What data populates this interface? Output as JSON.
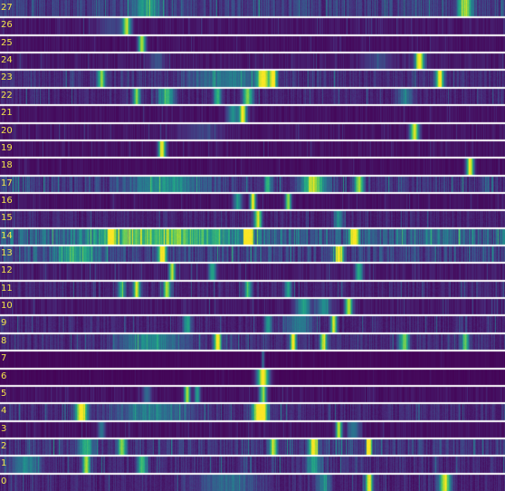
{
  "chart_data": {
    "type": "heatmap",
    "rows": [
      "27",
      "26",
      "25",
      "24",
      "23",
      "22",
      "21",
      "20",
      "19",
      "18",
      "17",
      "16",
      "15",
      "14",
      "13",
      "12",
      "11",
      "10",
      "9",
      "8",
      "7",
      "6",
      "5",
      "4",
      "3",
      "2",
      "1",
      "0"
    ],
    "colormap": "viridis",
    "value_range": [
      0,
      1
    ],
    "row_activity": [
      {
        "row": "27",
        "base": 0.18,
        "noise": 0.2,
        "peaks": [
          [
            0.29,
            0.02,
            0.35
          ],
          [
            0.92,
            0.01,
            0.7
          ]
        ]
      },
      {
        "row": "26",
        "base": 0.06,
        "noise": 0.08,
        "peaks": [
          [
            0.25,
            0.006,
            0.75
          ],
          [
            0.22,
            0.02,
            0.15
          ]
        ]
      },
      {
        "row": "25",
        "base": 0.05,
        "noise": 0.06,
        "peaks": [
          [
            0.28,
            0.005,
            0.85
          ]
        ]
      },
      {
        "row": "24",
        "base": 0.07,
        "noise": 0.08,
        "peaks": [
          [
            0.83,
            0.006,
            1.0
          ],
          [
            0.31,
            0.01,
            0.2
          ],
          [
            0.75,
            0.02,
            0.15
          ]
        ]
      },
      {
        "row": "23",
        "base": 0.13,
        "noise": 0.18,
        "peaks": [
          [
            0.2,
            0.005,
            0.7
          ],
          [
            0.52,
            0.008,
            0.85
          ],
          [
            0.54,
            0.005,
            0.9
          ],
          [
            0.87,
            0.005,
            0.95
          ],
          [
            0.45,
            0.05,
            0.3
          ]
        ]
      },
      {
        "row": "22",
        "base": 0.1,
        "noise": 0.15,
        "peaks": [
          [
            0.27,
            0.005,
            0.7
          ],
          [
            0.33,
            0.01,
            0.55
          ],
          [
            0.43,
            0.005,
            0.6
          ],
          [
            0.49,
            0.007,
            0.7
          ],
          [
            0.8,
            0.01,
            0.3
          ]
        ]
      },
      {
        "row": "21",
        "base": 0.05,
        "noise": 0.06,
        "peaks": [
          [
            0.48,
            0.005,
            0.95
          ],
          [
            0.46,
            0.008,
            0.45
          ]
        ]
      },
      {
        "row": "20",
        "base": 0.06,
        "noise": 0.08,
        "peaks": [
          [
            0.82,
            0.006,
            0.9
          ],
          [
            0.4,
            0.03,
            0.15
          ]
        ]
      },
      {
        "row": "19",
        "base": 0.05,
        "noise": 0.07,
        "peaks": [
          [
            0.32,
            0.005,
            0.95
          ]
        ]
      },
      {
        "row": "18",
        "base": 0.04,
        "noise": 0.05,
        "peaks": [
          [
            0.93,
            0.005,
            0.95
          ]
        ]
      },
      {
        "row": "17",
        "base": 0.16,
        "noise": 0.2,
        "peaks": [
          [
            0.62,
            0.015,
            0.75
          ],
          [
            0.71,
            0.006,
            0.7
          ],
          [
            0.33,
            0.05,
            0.35
          ],
          [
            0.53,
            0.005,
            0.5
          ]
        ]
      },
      {
        "row": "16",
        "base": 0.05,
        "noise": 0.07,
        "peaks": [
          [
            0.5,
            0.004,
            0.95
          ],
          [
            0.47,
            0.006,
            0.45
          ],
          [
            0.57,
            0.004,
            0.8
          ]
        ]
      },
      {
        "row": "15",
        "base": 0.1,
        "noise": 0.12,
        "peaks": [
          [
            0.51,
            0.005,
            0.85
          ],
          [
            0.67,
            0.006,
            0.4
          ]
        ]
      },
      {
        "row": "14",
        "base": 0.3,
        "noise": 0.32,
        "peaks": [
          [
            0.32,
            0.1,
            0.45
          ],
          [
            0.7,
            0.006,
            0.9
          ],
          [
            0.49,
            0.005,
            0.8
          ],
          [
            0.22,
            0.005,
            0.75
          ]
        ]
      },
      {
        "row": "13",
        "base": 0.2,
        "noise": 0.22,
        "peaks": [
          [
            0.32,
            0.006,
            0.9
          ],
          [
            0.67,
            0.006,
            0.75
          ],
          [
            0.15,
            0.03,
            0.4
          ]
        ]
      },
      {
        "row": "12",
        "base": 0.08,
        "noise": 0.1,
        "peaks": [
          [
            0.34,
            0.004,
            0.85
          ],
          [
            0.42,
            0.005,
            0.5
          ],
          [
            0.71,
            0.005,
            0.55
          ]
        ]
      },
      {
        "row": "11",
        "base": 0.1,
        "noise": 0.14,
        "peaks": [
          [
            0.27,
            0.005,
            0.8
          ],
          [
            0.33,
            0.005,
            0.8
          ],
          [
            0.49,
            0.005,
            0.5
          ],
          [
            0.57,
            0.005,
            0.45
          ],
          [
            0.24,
            0.005,
            0.55
          ]
        ]
      },
      {
        "row": "10",
        "base": 0.07,
        "noise": 0.1,
        "peaks": [
          [
            0.69,
            0.005,
            0.85
          ],
          [
            0.6,
            0.01,
            0.5
          ],
          [
            0.64,
            0.01,
            0.4
          ]
        ]
      },
      {
        "row": "9",
        "base": 0.1,
        "noise": 0.13,
        "peaks": [
          [
            0.66,
            0.004,
            0.85
          ],
          [
            0.37,
            0.005,
            0.5
          ],
          [
            0.53,
            0.005,
            0.45
          ],
          [
            0.59,
            0.02,
            0.3
          ]
        ]
      },
      {
        "row": "8",
        "base": 0.13,
        "noise": 0.18,
        "peaks": [
          [
            0.43,
            0.005,
            0.95
          ],
          [
            0.58,
            0.004,
            0.9
          ],
          [
            0.64,
            0.005,
            0.75
          ],
          [
            0.8,
            0.006,
            0.65
          ],
          [
            0.92,
            0.005,
            0.6
          ],
          [
            0.3,
            0.04,
            0.35
          ]
        ]
      },
      {
        "row": "7",
        "base": 0.02,
        "noise": 0.02,
        "peaks": [
          [
            0.52,
            0.002,
            0.35
          ]
        ]
      },
      {
        "row": "6",
        "base": 0.02,
        "noise": 0.03,
        "peaks": [
          [
            0.52,
            0.008,
            1.0
          ]
        ]
      },
      {
        "row": "5",
        "base": 0.05,
        "noise": 0.07,
        "peaks": [
          [
            0.37,
            0.004,
            0.85
          ],
          [
            0.52,
            0.005,
            0.75
          ],
          [
            0.39,
            0.004,
            0.5
          ],
          [
            0.29,
            0.006,
            0.3
          ]
        ]
      },
      {
        "row": "4",
        "base": 0.12,
        "noise": 0.16,
        "peaks": [
          [
            0.16,
            0.008,
            0.95
          ],
          [
            0.51,
            0.008,
            0.85
          ],
          [
            0.52,
            0.006,
            0.9
          ],
          [
            0.3,
            0.05,
            0.3
          ]
        ]
      },
      {
        "row": "3",
        "base": 0.05,
        "noise": 0.07,
        "peaks": [
          [
            0.67,
            0.004,
            0.9
          ],
          [
            0.2,
            0.005,
            0.35
          ],
          [
            0.7,
            0.008,
            0.35
          ]
        ]
      },
      {
        "row": "2",
        "base": 0.15,
        "noise": 0.2,
        "peaks": [
          [
            0.62,
            0.006,
            0.95
          ],
          [
            0.73,
            0.004,
            0.95
          ],
          [
            0.54,
            0.005,
            0.8
          ],
          [
            0.17,
            0.01,
            0.5
          ],
          [
            0.24,
            0.006,
            0.65
          ]
        ]
      },
      {
        "row": "1",
        "base": 0.12,
        "noise": 0.16,
        "peaks": [
          [
            0.17,
            0.005,
            0.75
          ],
          [
            0.28,
            0.006,
            0.6
          ],
          [
            0.62,
            0.01,
            0.45
          ],
          [
            0.05,
            0.02,
            0.35
          ]
        ]
      },
      {
        "row": "0",
        "base": 0.1,
        "noise": 0.14,
        "peaks": [
          [
            0.73,
            0.005,
            0.9
          ],
          [
            0.88,
            0.008,
            0.85
          ],
          [
            0.64,
            0.01,
            0.35
          ],
          [
            0.45,
            0.04,
            0.25
          ]
        ]
      }
    ]
  },
  "colors": {
    "separator": "#ffffff",
    "label": "#f5e64a",
    "low": "#440154",
    "high": "#fde725"
  }
}
